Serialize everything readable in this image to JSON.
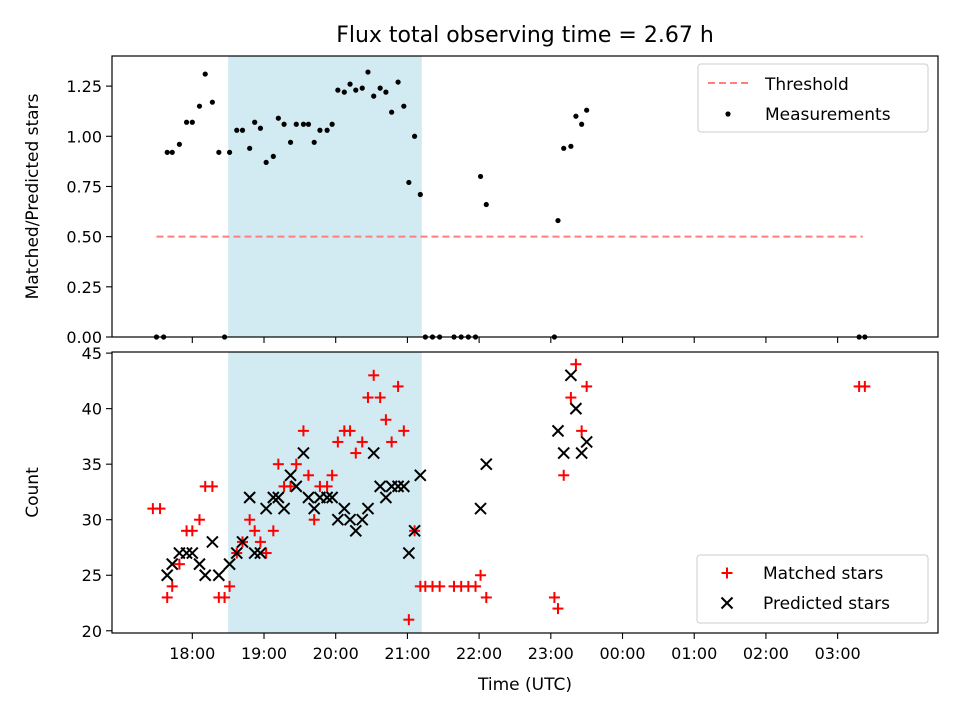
{
  "chart_data": {
    "type": "scatter",
    "title": "Flux total observing time = 2.67 h",
    "xlabel": "Time (UTC)",
    "x_ticks": [
      "18:00",
      "19:00",
      "20:00",
      "21:00",
      "22:00",
      "23:00",
      "00:00",
      "01:00",
      "02:00",
      "03:00"
    ],
    "x_tick_hours": [
      18,
      19,
      20,
      21,
      22,
      23,
      24,
      25,
      26,
      27
    ],
    "xlim_hours": [
      16.88,
      28.4
    ],
    "shaded_region_hours": [
      18.5,
      21.2
    ],
    "shade_color": "#add8e6",
    "panels": [
      {
        "ylabel": "Matched/Predicted stars",
        "ylim": [
          0,
          1.4
        ],
        "y_ticks": [
          0.0,
          0.25,
          0.5,
          0.75,
          1.0,
          1.25
        ],
        "y_tick_labels": [
          "0.00",
          "0.25",
          "0.50",
          "0.75",
          "1.00",
          "1.25"
        ],
        "legend_position": "top-right",
        "threshold": {
          "name": "Threshold",
          "value": 0.5,
          "x_range_hours": [
            17.5,
            27.35
          ],
          "color": "#ff7f7f"
        },
        "series": [
          {
            "name": "Measurements",
            "color": "#000000",
            "points": [
              [
                17.5,
                0.0
              ],
              [
                17.6,
                0.0
              ],
              [
                17.65,
                0.92
              ],
              [
                17.72,
                0.92
              ],
              [
                17.82,
                0.96
              ],
              [
                17.92,
                1.07
              ],
              [
                18.0,
                1.07
              ],
              [
                18.1,
                1.15
              ],
              [
                18.18,
                1.31
              ],
              [
                18.28,
                1.17
              ],
              [
                18.37,
                0.92
              ],
              [
                18.45,
                0.0
              ],
              [
                18.52,
                0.92
              ],
              [
                18.62,
                1.03
              ],
              [
                18.7,
                1.03
              ],
              [
                18.8,
                0.94
              ],
              [
                18.87,
                1.07
              ],
              [
                18.95,
                1.04
              ],
              [
                19.03,
                0.87
              ],
              [
                19.13,
                0.9
              ],
              [
                19.2,
                1.09
              ],
              [
                19.28,
                1.06
              ],
              [
                19.37,
                0.97
              ],
              [
                19.45,
                1.06
              ],
              [
                19.55,
                1.06
              ],
              [
                19.62,
                1.06
              ],
              [
                19.7,
                0.97
              ],
              [
                19.78,
                1.03
              ],
              [
                19.88,
                1.03
              ],
              [
                19.95,
                1.06
              ],
              [
                20.03,
                1.23
              ],
              [
                20.12,
                1.22
              ],
              [
                20.2,
                1.26
              ],
              [
                20.28,
                1.23
              ],
              [
                20.37,
                1.24
              ],
              [
                20.45,
                1.32
              ],
              [
                20.53,
                1.2
              ],
              [
                20.62,
                1.24
              ],
              [
                20.7,
                1.22
              ],
              [
                20.78,
                1.12
              ],
              [
                20.87,
                1.27
              ],
              [
                20.95,
                1.15
              ],
              [
                21.02,
                0.77
              ],
              [
                21.1,
                1.0
              ],
              [
                21.18,
                0.71
              ],
              [
                21.25,
                0.0
              ],
              [
                21.35,
                0.0
              ],
              [
                21.45,
                0.0
              ],
              [
                21.65,
                0.0
              ],
              [
                21.75,
                0.0
              ],
              [
                21.85,
                0.0
              ],
              [
                21.95,
                0.0
              ],
              [
                22.02,
                0.8
              ],
              [
                22.1,
                0.66
              ],
              [
                23.05,
                0.0
              ],
              [
                23.1,
                0.58
              ],
              [
                23.18,
                0.94
              ],
              [
                23.28,
                0.95
              ],
              [
                23.35,
                1.1
              ],
              [
                23.43,
                1.06
              ],
              [
                23.5,
                1.13
              ],
              [
                27.3,
                0.0
              ],
              [
                27.38,
                0.0
              ]
            ]
          }
        ]
      },
      {
        "ylabel": "Count",
        "ylim": [
          19.8,
          45.1
        ],
        "y_ticks": [
          20,
          25,
          30,
          35,
          40,
          45
        ],
        "y_tick_labels": [
          "20",
          "25",
          "30",
          "35",
          "40",
          "45"
        ],
        "legend_position": "bottom-right",
        "series": [
          {
            "name": "Matched stars",
            "marker": "+",
            "color": "#ff0000",
            "points": [
              [
                17.45,
                31
              ],
              [
                17.55,
                31
              ],
              [
                17.65,
                23
              ],
              [
                17.72,
                24
              ],
              [
                17.82,
                26
              ],
              [
                17.92,
                29
              ],
              [
                18.0,
                29
              ],
              [
                18.1,
                30
              ],
              [
                18.18,
                33
              ],
              [
                18.28,
                33
              ],
              [
                18.37,
                23
              ],
              [
                18.45,
                23
              ],
              [
                18.52,
                24
              ],
              [
                18.62,
                27
              ],
              [
                18.7,
                28
              ],
              [
                18.8,
                30
              ],
              [
                18.87,
                29
              ],
              [
                18.95,
                28
              ],
              [
                19.03,
                27
              ],
              [
                19.13,
                29
              ],
              [
                19.2,
                35
              ],
              [
                19.28,
                33
              ],
              [
                19.37,
                33
              ],
              [
                19.45,
                35
              ],
              [
                19.55,
                38
              ],
              [
                19.62,
                34
              ],
              [
                19.7,
                30
              ],
              [
                19.78,
                33
              ],
              [
                19.88,
                33
              ],
              [
                19.95,
                34
              ],
              [
                20.03,
                37
              ],
              [
                20.12,
                38
              ],
              [
                20.2,
                38
              ],
              [
                20.28,
                36
              ],
              [
                20.37,
                37
              ],
              [
                20.45,
                41
              ],
              [
                20.53,
                43
              ],
              [
                20.62,
                41
              ],
              [
                20.7,
                39
              ],
              [
                20.78,
                37
              ],
              [
                20.87,
                42
              ],
              [
                20.95,
                38
              ],
              [
                21.02,
                21
              ],
              [
                21.1,
                29
              ],
              [
                21.18,
                24
              ],
              [
                21.25,
                24
              ],
              [
                21.35,
                24
              ],
              [
                21.45,
                24
              ],
              [
                21.65,
                24
              ],
              [
                21.75,
                24
              ],
              [
                21.85,
                24
              ],
              [
                21.95,
                24
              ],
              [
                22.02,
                25
              ],
              [
                22.1,
                23
              ],
              [
                23.05,
                23
              ],
              [
                23.1,
                22
              ],
              [
                23.18,
                34
              ],
              [
                23.28,
                41
              ],
              [
                23.35,
                44
              ],
              [
                23.43,
                38
              ],
              [
                23.5,
                42
              ],
              [
                27.3,
                42
              ],
              [
                27.38,
                42
              ]
            ]
          },
          {
            "name": "Predicted stars",
            "marker": "x",
            "color": "#000000",
            "points": [
              [
                17.65,
                25
              ],
              [
                17.72,
                26
              ],
              [
                17.82,
                27
              ],
              [
                17.92,
                27
              ],
              [
                18.0,
                27
              ],
              [
                18.1,
                26
              ],
              [
                18.18,
                25
              ],
              [
                18.28,
                28
              ],
              [
                18.37,
                25
              ],
              [
                18.52,
                26
              ],
              [
                18.62,
                27
              ],
              [
                18.7,
                28
              ],
              [
                18.8,
                32
              ],
              [
                18.87,
                27
              ],
              [
                18.95,
                27
              ],
              [
                19.03,
                31
              ],
              [
                19.13,
                32
              ],
              [
                19.2,
                32
              ],
              [
                19.28,
                31
              ],
              [
                19.37,
                34
              ],
              [
                19.45,
                33
              ],
              [
                19.55,
                36
              ],
              [
                19.62,
                32
              ],
              [
                19.7,
                31
              ],
              [
                19.78,
                32
              ],
              [
                19.88,
                32
              ],
              [
                19.95,
                32
              ],
              [
                20.03,
                30
              ],
              [
                20.12,
                31
              ],
              [
                20.2,
                30
              ],
              [
                20.28,
                29
              ],
              [
                20.37,
                30
              ],
              [
                20.45,
                31
              ],
              [
                20.53,
                36
              ],
              [
                20.62,
                33
              ],
              [
                20.7,
                32
              ],
              [
                20.78,
                33
              ],
              [
                20.87,
                33
              ],
              [
                20.95,
                33
              ],
              [
                21.02,
                27
              ],
              [
                21.1,
                29
              ],
              [
                21.18,
                34
              ],
              [
                22.02,
                31
              ],
              [
                22.1,
                35
              ],
              [
                23.1,
                38
              ],
              [
                23.18,
                36
              ],
              [
                23.28,
                43
              ],
              [
                23.35,
                40
              ],
              [
                23.43,
                36
              ],
              [
                23.5,
                37
              ]
            ]
          }
        ]
      }
    ]
  }
}
